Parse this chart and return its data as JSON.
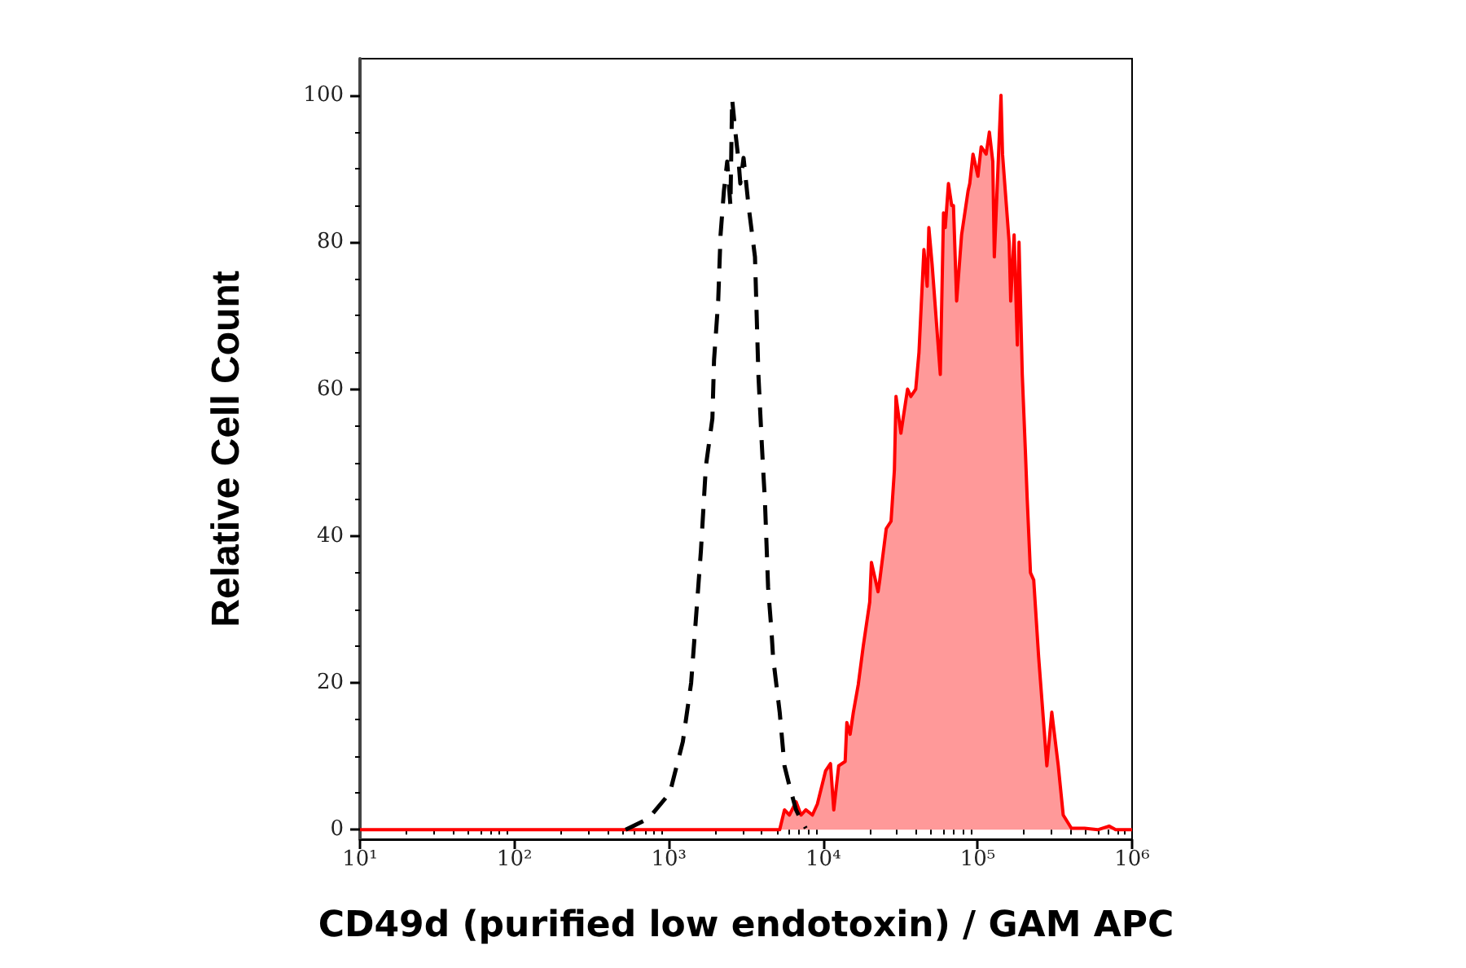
{
  "chart_data": {
    "type": "line",
    "xlabel": "CD49d (purified low endotoxin) / GAM APC",
    "ylabel": "Relative Cell Count",
    "log": "x",
    "xlim": [
      10,
      1000000
    ],
    "xticks": [
      {
        "value": 10,
        "label": "10¹"
      },
      {
        "value": 20,
        "label": null
      },
      {
        "value": 30,
        "label": null
      },
      {
        "value": 40,
        "label": null
      },
      {
        "value": 50,
        "label": null
      },
      {
        "value": 60,
        "label": null
      },
      {
        "value": 70,
        "label": null
      },
      {
        "value": 80,
        "label": null
      },
      {
        "value": 90,
        "label": null
      },
      {
        "value": 100,
        "label": "10²"
      },
      {
        "value": 200,
        "label": null
      },
      {
        "value": 300,
        "label": null
      },
      {
        "value": 400,
        "label": null
      },
      {
        "value": 500,
        "label": null
      },
      {
        "value": 600,
        "label": null
      },
      {
        "value": 700,
        "label": null
      },
      {
        "value": 800,
        "label": null
      },
      {
        "value": 900,
        "label": null
      },
      {
        "value": 1000,
        "label": "10³"
      },
      {
        "value": 2000,
        "label": null
      },
      {
        "value": 3000,
        "label": null
      },
      {
        "value": 4000,
        "label": null
      },
      {
        "value": 5000,
        "label": null
      },
      {
        "value": 6000,
        "label": null
      },
      {
        "value": 7000,
        "label": null
      },
      {
        "value": 8000,
        "label": null
      },
      {
        "value": 9000,
        "label": null
      },
      {
        "value": 10000,
        "label": "10⁴"
      },
      {
        "value": 20000,
        "label": null
      },
      {
        "value": 30000,
        "label": null
      },
      {
        "value": 40000,
        "label": null
      },
      {
        "value": 50000,
        "label": null
      },
      {
        "value": 60000,
        "label": null
      },
      {
        "value": 70000,
        "label": null
      },
      {
        "value": 80000,
        "label": null
      },
      {
        "value": 90000,
        "label": null
      },
      {
        "value": 100000,
        "label": "10⁵"
      },
      {
        "value": 200000,
        "label": null
      },
      {
        "value": 300000,
        "label": null
      },
      {
        "value": 400000,
        "label": null
      },
      {
        "value": 500000,
        "label": null
      },
      {
        "value": 600000,
        "label": null
      },
      {
        "value": 700000,
        "label": null
      },
      {
        "value": 800000,
        "label": null
      },
      {
        "value": 900000,
        "label": null
      },
      {
        "value": 1000000,
        "label": "10⁶"
      }
    ],
    "ylim": [
      -1.3,
      105
    ],
    "yticks": [
      0,
      {
        "value": 5,
        "label": null
      },
      {
        "value": 10,
        "label": null
      },
      {
        "value": 15,
        "label": null
      },
      20,
      {
        "value": 25,
        "label": null
      },
      {
        "value": 30,
        "label": null
      },
      {
        "value": 35,
        "label": null
      },
      40,
      {
        "value": 45,
        "label": null
      },
      {
        "value": 50,
        "label": null
      },
      {
        "value": 55,
        "label": null
      },
      60,
      {
        "value": 65,
        "label": null
      },
      {
        "value": 70,
        "label": null
      },
      {
        "value": 75,
        "label": null
      },
      80,
      {
        "value": 85,
        "label": null
      },
      {
        "value": 90,
        "label": null
      },
      {
        "value": 95,
        "label": null
      },
      100
    ],
    "series": [
      {
        "type": "area",
        "color": "#ff0000",
        "x": [
          10,
          5224,
          5610,
          6039,
          6668,
          7178,
          7713,
          8511,
          9162,
          10350,
          11140,
          11700,
          12590,
          13870,
          14220,
          14930,
          15670,
          16870,
          18160,
          20000,
          20510,
          22650,
          23170,
          25590,
          27480,
          28900,
          29600,
          31840,
          35160,
          36900,
          39720,
          41690,
          44870,
          47100,
          48300,
          50700,
          57300,
          60100,
          61700,
          64700,
          67900,
          69700,
          73100,
          78700,
          86700,
          88900,
          93300,
          100400,
          105400,
          113500,
          119100,
          125300,
          128200,
          141600,
          144900,
          159900,
          163700,
          172200,
          180700,
          185300,
          194500,
          204200,
          209400,
          219800,
          230700,
          248300,
          267300,
          280600,
          302000,
          332700,
          358100,
          404600,
          492000,
          600000,
          709800,
          783000,
          1000000
        ],
        "values": [
          0,
          0,
          2.7,
          2,
          3.8,
          2,
          2.7,
          2,
          3.5,
          8,
          9,
          2.7,
          8.7,
          9.3,
          14.6,
          13,
          16,
          19.8,
          25,
          31,
          36.4,
          32.4,
          33.8,
          41,
          42,
          49,
          59,
          54,
          60,
          59,
          60,
          65,
          79,
          74,
          82,
          77,
          62,
          84,
          82,
          88,
          85,
          85,
          72,
          81,
          87,
          88,
          92,
          89,
          93,
          92,
          95,
          91,
          78,
          100,
          92,
          80,
          72,
          81,
          66,
          80,
          62,
          51,
          45,
          35,
          34,
          23.5,
          14.6,
          8.7,
          16,
          8.7,
          2,
          0.2,
          0.2,
          0,
          0.5,
          0,
          0
        ]
      },
      {
        "color": "#000000",
        "line_style": "dashed",
        "x": [
          525,
          738,
          1015,
          1233,
          1395,
          1465,
          1538,
          1614,
          1738,
          1915,
          1963,
          2088,
          2163,
          2274,
          2388,
          2506,
          2570,
          2698,
          2831,
          2904,
          3048,
          3281,
          3614,
          3707,
          3802,
          3990,
          4083,
          4188,
          4395,
          4624,
          4732,
          5224,
          5610,
          6039,
          6668,
          7178,
          7713
        ],
        "values": [
          0,
          1.5,
          5,
          12,
          20,
          26,
          32,
          38,
          49.5,
          56,
          64,
          72,
          81,
          87,
          91,
          85,
          99.5,
          95,
          91,
          88,
          91.5,
          85,
          78,
          70,
          62,
          53,
          49,
          45,
          33,
          27,
          23.5,
          16,
          8.7,
          6,
          2.7,
          1.3,
          0.2
        ]
      }
    ]
  }
}
